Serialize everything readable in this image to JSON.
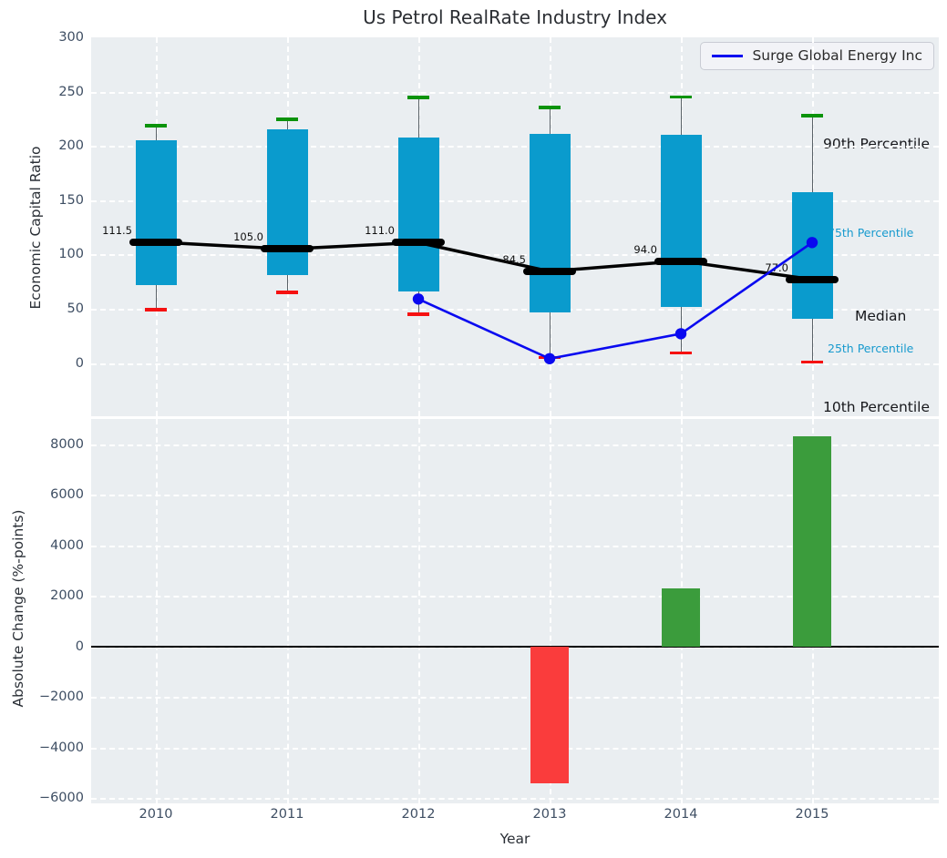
{
  "title": "Us Petrol RealRate Industry Index",
  "legend_label": "Surge Global Energy Inc",
  "right_labels": {
    "p90": "90th Percentile",
    "p75": "75th Percentile",
    "median": "Median",
    "p25": "25th Percentile",
    "p10": "10th Percentile"
  },
  "colors": {
    "box": "#0a9bcd",
    "median_line": "#000000",
    "cap_90": "#0b930b",
    "cap_10": "#f51111",
    "series_line": "#0909f0",
    "bar_positive": "#3b9c3c",
    "bar_negative": "#fa3c3c",
    "axes_background": "#eaeef1",
    "grid": "#ffffff",
    "tick_label": "#3e4e63",
    "percentile_label_accent": "#179ace"
  },
  "chart_data": [
    {
      "type": "boxplot+line",
      "title": "Us Petrol RealRate Industry Index",
      "ylabel": "Economic Capital Ratio",
      "categories": [
        "2010",
        "2011",
        "2012",
        "2013",
        "2014",
        "2015"
      ],
      "ylim": [
        -49,
        300
      ],
      "yticks": [
        300,
        250,
        200,
        150,
        100,
        50,
        0
      ],
      "grid": true,
      "legend_position": "upper right",
      "boxes": {
        "p10": [
          49,
          65,
          45,
          5,
          9.5,
          1
        ],
        "p25": [
          72,
          81,
          66,
          47,
          52,
          41
        ],
        "median": [
          111.5,
          105.0,
          111.0,
          84.5,
          94.0,
          77.0
        ],
        "p75": [
          205,
          215,
          207.5,
          211.5,
          210,
          157.5
        ],
        "p90": [
          218.5,
          224.5,
          244.5,
          235.5,
          245,
          228
        ]
      },
      "median_labels": [
        "111.5",
        "105.0",
        "111.0",
        "84.5",
        "94.0",
        "77.0"
      ],
      "series": [
        {
          "name": "Surge Global Energy Inc",
          "values": [
            null,
            null,
            59,
            4,
            27,
            111
          ]
        }
      ]
    },
    {
      "type": "bar",
      "xlabel": "Year",
      "ylabel": "Absolute Change (%-points)",
      "categories": [
        "2010",
        "2011",
        "2012",
        "2013",
        "2014",
        "2015"
      ],
      "values": [
        null,
        null,
        null,
        -5400,
        2300,
        8300
      ],
      "ylim": [
        -6200,
        9000
      ],
      "yticks": [
        8000,
        6000,
        4000,
        2000,
        0,
        -2000,
        -4000,
        -6000
      ],
      "grid": true
    }
  ]
}
